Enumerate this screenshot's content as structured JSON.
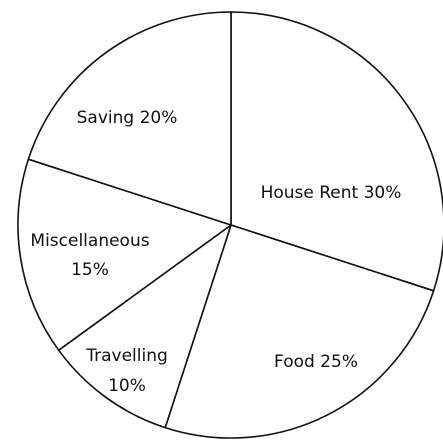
{
  "chart_data": {
    "type": "pie",
    "title": "",
    "slices": [
      {
        "label": "House Rent",
        "value": 30,
        "text": "House Rent 30%"
      },
      {
        "label": "Food",
        "value": 25,
        "text": "Food 25%"
      },
      {
        "label": "Travelling",
        "value": 10,
        "lines": [
          "Travelling",
          "10%"
        ]
      },
      {
        "label": "Miscellaneous",
        "value": 15,
        "lines": [
          "Miscellaneous",
          "15%"
        ]
      },
      {
        "label": "Saving",
        "value": 20,
        "text": "Saving 20%"
      }
    ],
    "slice_fill": "#ffffff",
    "stroke_color": "#111111",
    "legend": "none"
  }
}
